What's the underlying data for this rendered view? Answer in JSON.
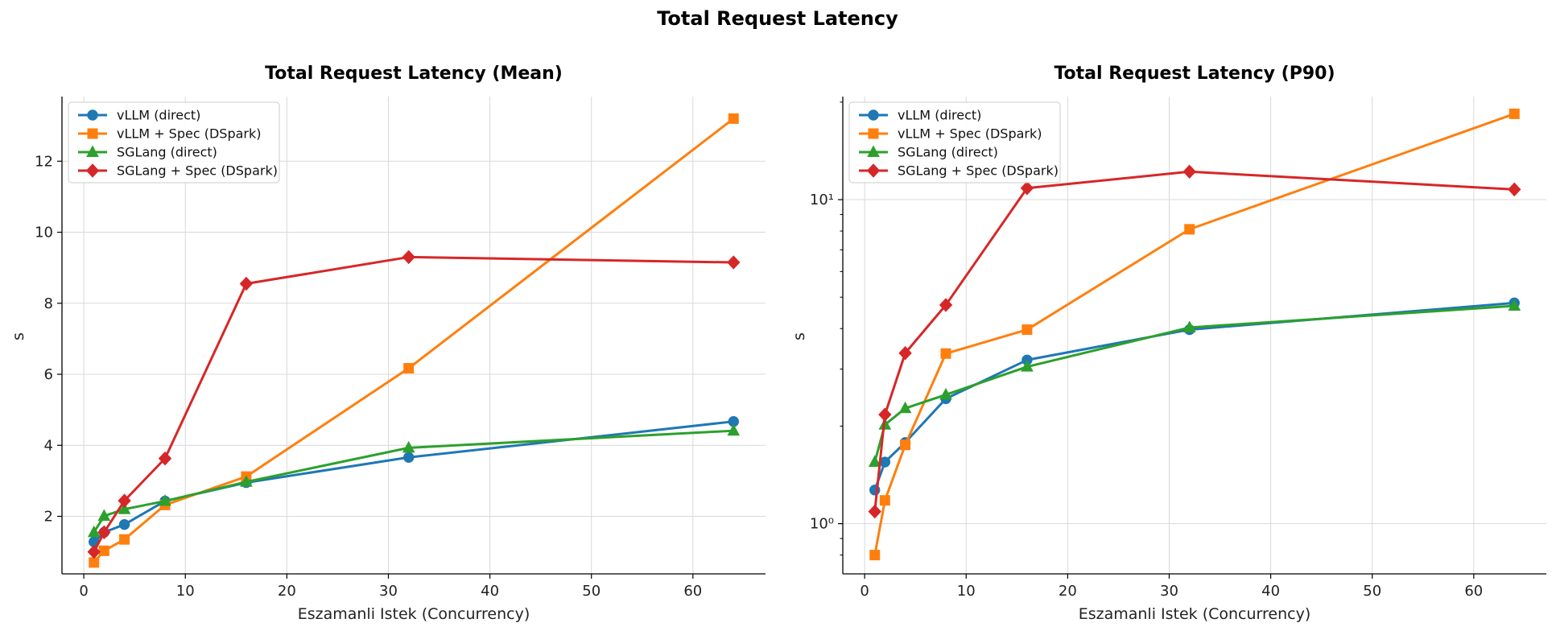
{
  "figure": {
    "title": "Total Request Latency"
  },
  "colors": {
    "vLLM (direct)": "#1f77b4",
    "vLLM + Spec (DSpark)": "#ff7f0e",
    "SGLang (direct)": "#2ca02c",
    "SGLang + Spec (DSpark)": "#d62728"
  },
  "chart_data": [
    {
      "type": "line",
      "title": "Total Request Latency (Mean)",
      "xlabel": "Eszamanli Istek (Concurrency)",
      "ylabel": "s",
      "yscale": "linear",
      "xlim": [
        -2.15,
        67.15
      ],
      "ylim": [
        0.38,
        13.82
      ],
      "xticks": [
        0,
        10,
        20,
        30,
        40,
        50,
        60
      ],
      "yticks": [
        2,
        4,
        6,
        8,
        10,
        12
      ],
      "ytick_labels": [
        "2",
        "4",
        "6",
        "8",
        "10",
        "12"
      ],
      "grid": true,
      "legend": "upper left",
      "x": [
        1,
        2,
        4,
        8,
        16,
        32,
        64
      ],
      "series": [
        {
          "name": "vLLM (direct)",
          "marker": "circle",
          "values": [
            1.28,
            1.55,
            1.77,
            2.43,
            2.95,
            3.66,
            4.67
          ]
        },
        {
          "name": "vLLM + Spec (DSpark)",
          "marker": "square",
          "values": [
            0.7,
            1.03,
            1.35,
            2.32,
            3.12,
            6.17,
            13.2
          ]
        },
        {
          "name": "SGLang (direct)",
          "marker": "triangle",
          "values": [
            1.55,
            2.01,
            2.2,
            2.43,
            2.97,
            3.93,
            4.41
          ]
        },
        {
          "name": "SGLang + Spec (DSpark)",
          "marker": "diamond",
          "values": [
            1.0,
            1.55,
            2.44,
            3.63,
            8.55,
            9.3,
            9.15
          ]
        }
      ]
    },
    {
      "type": "line",
      "title": "Total Request Latency (P90)",
      "xlabel": "Eszamanli Istek (Concurrency)",
      "ylabel": "s",
      "yscale": "log",
      "xlim": [
        -2.15,
        67.15
      ],
      "ylim": [
        0.7,
        20.8
      ],
      "xticks": [
        0,
        10,
        20,
        30,
        40,
        50,
        60
      ],
      "yticks": [
        1,
        10
      ],
      "ytick_labels": [
        "10⁰",
        "10¹"
      ],
      "grid": true,
      "legend": "upper left",
      "x": [
        1,
        2,
        4,
        8,
        16,
        32,
        64
      ],
      "series": [
        {
          "name": "vLLM (direct)",
          "marker": "circle",
          "values": [
            1.27,
            1.55,
            1.78,
            2.43,
            3.2,
            3.97,
            4.8
          ]
        },
        {
          "name": "vLLM + Spec (DSpark)",
          "marker": "square",
          "values": [
            0.8,
            1.18,
            1.75,
            3.35,
            3.97,
            8.1,
            18.4
          ]
        },
        {
          "name": "SGLang (direct)",
          "marker": "triangle",
          "values": [
            1.55,
            2.02,
            2.27,
            2.5,
            3.05,
            4.03,
            4.7
          ]
        },
        {
          "name": "SGLang + Spec (DSpark)",
          "marker": "diamond",
          "values": [
            1.09,
            2.17,
            3.36,
            4.73,
            10.85,
            12.2,
            10.75
          ]
        }
      ]
    }
  ]
}
